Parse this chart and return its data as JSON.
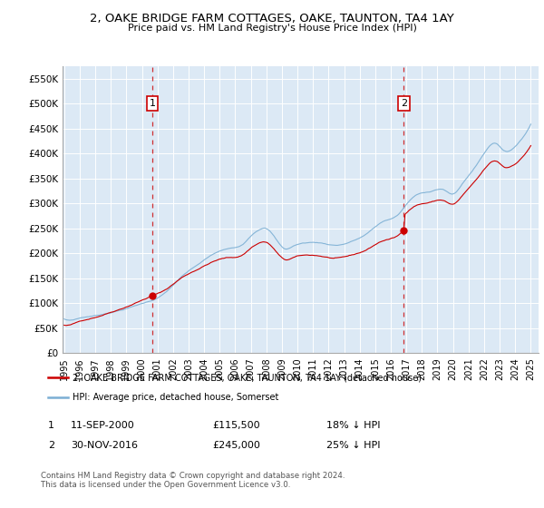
{
  "title": "2, OAKE BRIDGE FARM COTTAGES, OAKE, TAUNTON, TA4 1AY",
  "subtitle": "Price paid vs. HM Land Registry's House Price Index (HPI)",
  "bg_color": "#dce9f5",
  "hpi_color": "#7bafd4",
  "price_color": "#cc0000",
  "dashed_color": "#cc0000",
  "ylim_min": 0,
  "ylim_max": 575000,
  "yticks": [
    0,
    50000,
    100000,
    150000,
    200000,
    250000,
    300000,
    350000,
    400000,
    450000,
    500000,
    550000
  ],
  "sale1_year": 2000,
  "sale1_month": 9,
  "sale1_price": 115500,
  "sale1_label": "1",
  "sale2_year": 2016,
  "sale2_month": 11,
  "sale2_price": 245000,
  "sale2_label": "2",
  "legend_line1": "2, OAKE BRIDGE FARM COTTAGES, OAKE, TAUNTON, TA4 1AY (detached house)",
  "legend_line2": "HPI: Average price, detached house, Somerset",
  "table_row1_label": "1",
  "table_row1_date": "11-SEP-2000",
  "table_row1_price": "£115,500",
  "table_row1_hpi": "18% ↓ HPI",
  "table_row2_label": "2",
  "table_row2_date": "30-NOV-2016",
  "table_row2_price": "£245,000",
  "table_row2_hpi": "25% ↓ HPI",
  "footnote": "Contains HM Land Registry data © Crown copyright and database right 2024.\nThis data is licensed under the Open Government Licence v3.0.",
  "start_year": 1995,
  "end_year": 2025,
  "xlim_min": 1994.9,
  "xlim_max": 2025.5
}
